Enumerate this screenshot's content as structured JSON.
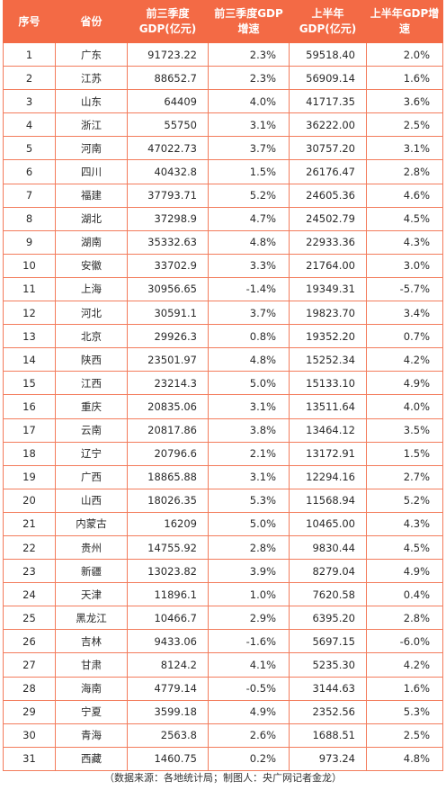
{
  "headers": {
    "rank": "序号",
    "province": "省份",
    "gdp_q3_line1": "前三季度",
    "gdp_q3_line2": "GDP(亿元)",
    "growth_q3_line1": "前三季度GDP",
    "growth_q3_line2": "增速",
    "gdp_h1_line1": "上半年",
    "gdp_h1_line2": "GDP(亿元)",
    "growth_h1_line1": "上半年GDP增",
    "growth_h1_line2": "速"
  },
  "rows": [
    {
      "rank": "1",
      "province": "广东",
      "gdp_q3": "91723.22",
      "growth_q3": "2.3%",
      "gdp_h1": "59518.40",
      "growth_h1": "2.0%"
    },
    {
      "rank": "2",
      "province": "江苏",
      "gdp_q3": "88652.7",
      "growth_q3": "2.3%",
      "gdp_h1": "56909.14",
      "growth_h1": "1.6%"
    },
    {
      "rank": "3",
      "province": "山东",
      "gdp_q3": "64409",
      "growth_q3": "4.0%",
      "gdp_h1": "41717.35",
      "growth_h1": "3.6%"
    },
    {
      "rank": "4",
      "province": "浙江",
      "gdp_q3": "55750",
      "growth_q3": "3.1%",
      "gdp_h1": "36222.00",
      "growth_h1": "2.5%"
    },
    {
      "rank": "5",
      "province": "河南",
      "gdp_q3": "47022.73",
      "growth_q3": "3.7%",
      "gdp_h1": "30757.20",
      "growth_h1": "3.1%"
    },
    {
      "rank": "6",
      "province": "四川",
      "gdp_q3": "40432.8",
      "growth_q3": "1.5%",
      "gdp_h1": "26176.47",
      "growth_h1": "2.8%"
    },
    {
      "rank": "7",
      "province": "福建",
      "gdp_q3": "37793.71",
      "growth_q3": "5.2%",
      "gdp_h1": "24605.36",
      "growth_h1": "4.6%"
    },
    {
      "rank": "8",
      "province": "湖北",
      "gdp_q3": "37298.9",
      "growth_q3": "4.7%",
      "gdp_h1": "24502.79",
      "growth_h1": "4.5%"
    },
    {
      "rank": "9",
      "province": "湖南",
      "gdp_q3": "35332.63",
      "growth_q3": "4.8%",
      "gdp_h1": "22933.36",
      "growth_h1": "4.3%"
    },
    {
      "rank": "10",
      "province": "安徽",
      "gdp_q3": "33702.9",
      "growth_q3": "3.3%",
      "gdp_h1": "21764.00",
      "growth_h1": "3.0%"
    },
    {
      "rank": "11",
      "province": "上海",
      "gdp_q3": "30956.65",
      "growth_q3": "-1.4%",
      "gdp_h1": "19349.31",
      "growth_h1": "-5.7%"
    },
    {
      "rank": "12",
      "province": "河北",
      "gdp_q3": "30591.1",
      "growth_q3": "3.7%",
      "gdp_h1": "19823.70",
      "growth_h1": "3.4%"
    },
    {
      "rank": "13",
      "province": "北京",
      "gdp_q3": "29926.3",
      "growth_q3": "0.8%",
      "gdp_h1": "19352.20",
      "growth_h1": "0.7%"
    },
    {
      "rank": "14",
      "province": "陕西",
      "gdp_q3": "23501.97",
      "growth_q3": "4.8%",
      "gdp_h1": "15252.34",
      "growth_h1": "4.2%"
    },
    {
      "rank": "15",
      "province": "江西",
      "gdp_q3": "23214.3",
      "growth_q3": "5.0%",
      "gdp_h1": "15133.10",
      "growth_h1": "4.9%"
    },
    {
      "rank": "16",
      "province": "重庆",
      "gdp_q3": "20835.06",
      "growth_q3": "3.1%",
      "gdp_h1": "13511.64",
      "growth_h1": "4.0%"
    },
    {
      "rank": "17",
      "province": "云南",
      "gdp_q3": "20817.86",
      "growth_q3": "3.8%",
      "gdp_h1": "13464.12",
      "growth_h1": "3.5%"
    },
    {
      "rank": "18",
      "province": "辽宁",
      "gdp_q3": "20796.6",
      "growth_q3": "2.1%",
      "gdp_h1": "13172.91",
      "growth_h1": "1.5%"
    },
    {
      "rank": "19",
      "province": "广西",
      "gdp_q3": "18865.88",
      "growth_q3": "3.1%",
      "gdp_h1": "12294.16",
      "growth_h1": "2.7%"
    },
    {
      "rank": "20",
      "province": "山西",
      "gdp_q3": "18026.35",
      "growth_q3": "5.3%",
      "gdp_h1": "11568.94",
      "growth_h1": "5.2%"
    },
    {
      "rank": "21",
      "province": "内蒙古",
      "gdp_q3": "16209",
      "growth_q3": "5.0%",
      "gdp_h1": "10465.00",
      "growth_h1": "4.3%"
    },
    {
      "rank": "22",
      "province": "贵州",
      "gdp_q3": "14755.92",
      "growth_q3": "2.8%",
      "gdp_h1": "9830.44",
      "growth_h1": "4.5%"
    },
    {
      "rank": "23",
      "province": "新疆",
      "gdp_q3": "13023.82",
      "growth_q3": "3.9%",
      "gdp_h1": "8279.04",
      "growth_h1": "4.9%"
    },
    {
      "rank": "24",
      "province": "天津",
      "gdp_q3": "11896.1",
      "growth_q3": "1.0%",
      "gdp_h1": "7620.58",
      "growth_h1": "0.4%"
    },
    {
      "rank": "25",
      "province": "黑龙江",
      "gdp_q3": "10466.7",
      "growth_q3": "2.9%",
      "gdp_h1": "6395.20",
      "growth_h1": "2.8%"
    },
    {
      "rank": "26",
      "province": "吉林",
      "gdp_q3": "9433.06",
      "growth_q3": "-1.6%",
      "gdp_h1": "5697.15",
      "growth_h1": "-6.0%"
    },
    {
      "rank": "27",
      "province": "甘肃",
      "gdp_q3": "8124.2",
      "growth_q3": "4.1%",
      "gdp_h1": "5235.30",
      "growth_h1": "4.2%"
    },
    {
      "rank": "28",
      "province": "海南",
      "gdp_q3": "4779.14",
      "growth_q3": "-0.5%",
      "gdp_h1": "3144.63",
      "growth_h1": "1.6%"
    },
    {
      "rank": "29",
      "province": "宁夏",
      "gdp_q3": "3599.18",
      "growth_q3": "4.9%",
      "gdp_h1": "2352.56",
      "growth_h1": "5.3%"
    },
    {
      "rank": "30",
      "province": "青海",
      "gdp_q3": "2563.8",
      "growth_q3": "2.6%",
      "gdp_h1": "1688.51",
      "growth_h1": "2.5%"
    },
    {
      "rank": "31",
      "province": "西藏",
      "gdp_q3": "1460.75",
      "growth_q3": "0.2%",
      "gdp_h1": "973.24",
      "growth_h1": "4.8%"
    }
  ],
  "footer": {
    "source": "（数据来源：各地统计局；制图人：央广网记者金龙）"
  },
  "colors": {
    "header_bg": "#f36a45",
    "border": "#f37c5c"
  }
}
